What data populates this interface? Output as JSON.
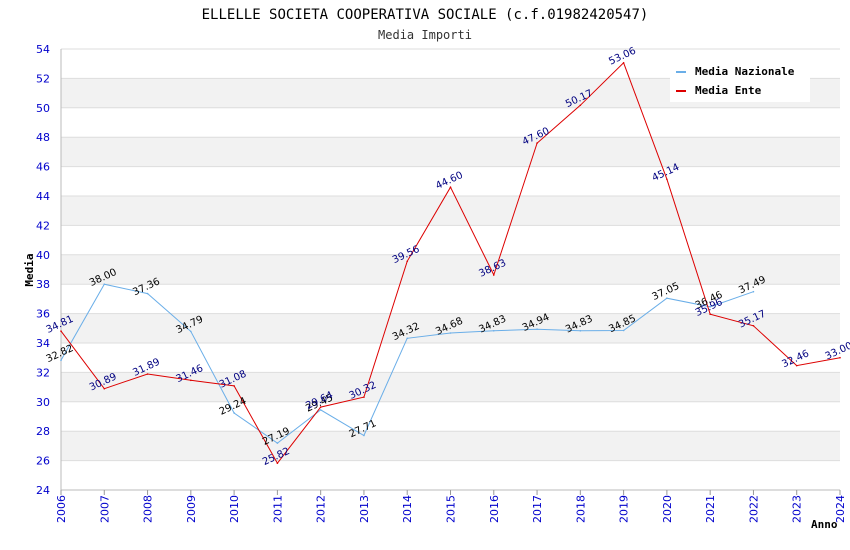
{
  "chart_data": {
    "type": "line",
    "title": "ELLELLE SOCIETA COOPERATIVA SOCIALE (c.f.01982420547)",
    "subtitle": "Media Importi",
    "xlabel": "Anno",
    "ylabel": "Media",
    "x": [
      "2006",
      "2007",
      "2008",
      "2009",
      "2010",
      "2011",
      "2012",
      "2013",
      "2014",
      "2015",
      "2016",
      "2017",
      "2018",
      "2019",
      "2020",
      "2021",
      "2022",
      "2023",
      "2024"
    ],
    "ylim": [
      24,
      54
    ],
    "yticks": [
      "24",
      "26",
      "28",
      "30",
      "32",
      "34",
      "36",
      "38",
      "40",
      "42",
      "44",
      "46",
      "48",
      "50",
      "52",
      "54"
    ],
    "grid": true,
    "legend_position": "top-right",
    "series": [
      {
        "name": "Media Nazionale",
        "color": "#6aaee8",
        "label_color": "#000000",
        "values": [
          32.82,
          38.0,
          37.36,
          34.79,
          29.24,
          27.19,
          29.45,
          27.71,
          34.32,
          34.68,
          34.83,
          34.94,
          34.83,
          34.85,
          37.05,
          36.46,
          37.49,
          null,
          null
        ],
        "labels": [
          "32.82",
          "38.00",
          "37.36",
          "34.79",
          "29.24",
          "27.19",
          "29.45",
          "27.71",
          "34.32",
          "34.68",
          "34.83",
          "34.94",
          "34.83",
          "34.85",
          "37.05",
          "36.46",
          "37.49",
          "",
          ""
        ]
      },
      {
        "name": "Media Ente",
        "color": "#dd0000",
        "label_color": "#000080",
        "values": [
          34.81,
          30.89,
          31.89,
          31.46,
          31.08,
          25.82,
          29.64,
          30.32,
          39.56,
          44.6,
          38.63,
          47.6,
          50.17,
          53.06,
          45.14,
          35.96,
          35.17,
          32.46,
          33.0
        ],
        "labels": [
          "34.81",
          "30.89",
          "31.89",
          "31.46",
          "31.08",
          "25.82",
          "29.64",
          "30.32",
          "39.56",
          "44.60",
          "38.63",
          "47.60",
          "50.17",
          "53.06",
          "45.14",
          "35.96",
          "35.17",
          "32.46",
          "33.00"
        ]
      }
    ]
  }
}
